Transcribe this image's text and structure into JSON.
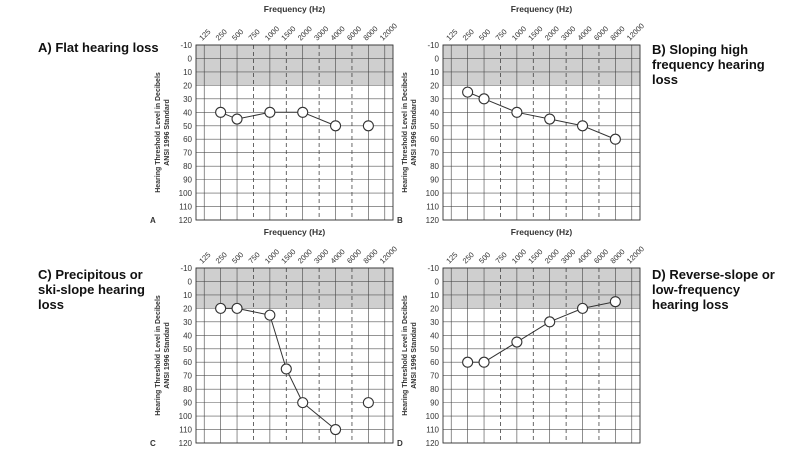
{
  "charts": [
    {
      "caption": "A) Flat hearing loss",
      "corner_letter": "A",
      "chart_data": {
        "type": "line",
        "xlabel": "Frequency (Hz)",
        "ylabel_lines": [
          "Hearing Threshold Level in Decibels",
          "ANSI 1996 Standard"
        ],
        "x_ticks": [
          "125",
          "250",
          "500",
          "750",
          "1000",
          "1500",
          "2000",
          "3000",
          "4000",
          "6000",
          "8000",
          "12000"
        ],
        "y_ticks": [
          -10,
          0,
          10,
          20,
          30,
          40,
          50,
          60,
          70,
          80,
          90,
          100,
          110,
          120
        ],
        "ylim": [
          -10,
          120
        ],
        "normal_range": [
          -10,
          20
        ],
        "series": [
          {
            "points": [
              [
                "250",
                40
              ],
              [
                "500",
                45
              ],
              [
                "1000",
                40
              ],
              [
                "2000",
                40
              ],
              [
                "4000",
                50
              ],
              [
                "8000",
                50
              ]
            ],
            "connected_count": 5
          }
        ]
      }
    },
    {
      "caption": "B) Sloping high\nfrequency hearing\nloss",
      "corner_letter": "B",
      "chart_data": {
        "type": "line",
        "xlabel": "Frequency (Hz)",
        "ylabel_lines": [
          "Hearing Threshold Level in Decibels",
          "ANSI 1996 Standard"
        ],
        "x_ticks": [
          "125",
          "250",
          "500",
          "750",
          "1000",
          "1500",
          "2000",
          "3000",
          "4000",
          "6000",
          "8000",
          "12000"
        ],
        "y_ticks": [
          -10,
          0,
          10,
          20,
          30,
          40,
          50,
          60,
          70,
          80,
          90,
          100,
          110,
          120
        ],
        "ylim": [
          -10,
          120
        ],
        "normal_range": [
          -10,
          20
        ],
        "series": [
          {
            "points": [
              [
                "250",
                25
              ],
              [
                "500",
                30
              ],
              [
                "1000",
                40
              ],
              [
                "2000",
                45
              ],
              [
                "4000",
                50
              ],
              [
                "8000",
                60
              ]
            ],
            "connected_count": 6
          }
        ]
      }
    },
    {
      "caption": "C) Precipitous or\nski-slope hearing\nloss",
      "corner_letter": "C",
      "chart_data": {
        "type": "line",
        "xlabel": "Frequency (Hz)",
        "ylabel_lines": [
          "Hearing Threshold Level in Decibels",
          "ANSI 1996 Standard"
        ],
        "x_ticks": [
          "125",
          "250",
          "500",
          "750",
          "1000",
          "1500",
          "2000",
          "3000",
          "4000",
          "6000",
          "8000",
          "12000"
        ],
        "y_ticks": [
          -10,
          0,
          10,
          20,
          30,
          40,
          50,
          60,
          70,
          80,
          90,
          100,
          110,
          120
        ],
        "ylim": [
          -10,
          120
        ],
        "normal_range": [
          -10,
          20
        ],
        "series": [
          {
            "points": [
              [
                "250",
                20
              ],
              [
                "500",
                20
              ],
              [
                "1000",
                25
              ],
              [
                "1500",
                65
              ],
              [
                "2000",
                90
              ],
              [
                "4000",
                110
              ],
              [
                "8000",
                90
              ]
            ],
            "connected_count": 6
          }
        ]
      }
    },
    {
      "caption": "D) Reverse-slope or\nlow-frequency\nhearing loss",
      "corner_letter": "D",
      "chart_data": {
        "type": "line",
        "xlabel": "Frequency (Hz)",
        "ylabel_lines": [
          "Hearing Threshold Level in Decibels",
          "ANSI 1996 Standard"
        ],
        "x_ticks": [
          "125",
          "250",
          "500",
          "750",
          "1000",
          "1500",
          "2000",
          "3000",
          "4000",
          "6000",
          "8000",
          "12000"
        ],
        "y_ticks": [
          -10,
          0,
          10,
          20,
          30,
          40,
          50,
          60,
          70,
          80,
          90,
          100,
          110,
          120
        ],
        "ylim": [
          -10,
          120
        ],
        "normal_range": [
          -10,
          20
        ],
        "series": [
          {
            "points": [
              [
                "250",
                60
              ],
              [
                "500",
                60
              ],
              [
                "1000",
                45
              ],
              [
                "2000",
                30
              ],
              [
                "4000",
                20
              ],
              [
                "8000",
                15
              ]
            ],
            "connected_count": 6
          }
        ]
      }
    }
  ]
}
